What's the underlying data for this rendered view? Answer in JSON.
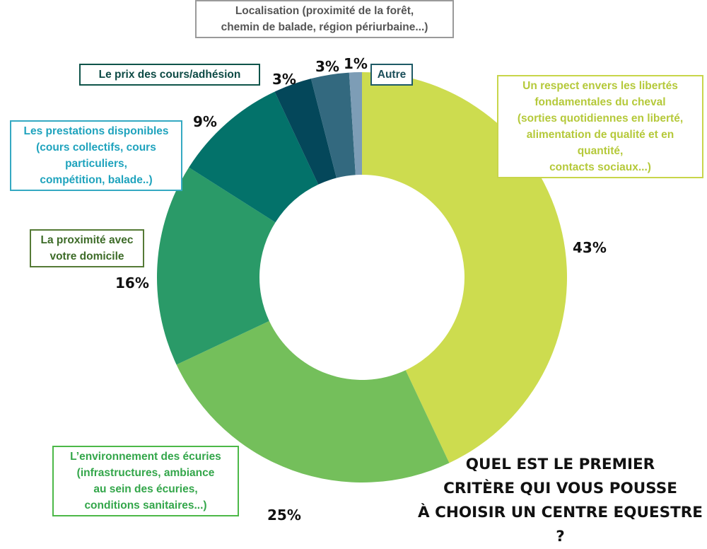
{
  "chart_data": {
    "type": "pie",
    "variant": "donut",
    "title": "QUEL EST LE PREMIER\nCRITÈRE QUI VOUS POUSSE\nÀ CHOISIR UN CENTRE EQUESTRE ?",
    "slices": [
      {
        "label": "Un respect envers les libertés\nfondamentales du cheval\n(sorties quotidiennes en liberté,\nalimentation de qualité et en quantité,\ncontacts sociaux...)",
        "value": 43,
        "value_label": "43%",
        "color": "#cddc4f"
      },
      {
        "label": "L’environnement des écuries\n(infrastructures, ambiance\nau sein des écuries,\nconditions sanitaires...)",
        "value": 25,
        "value_label": "25%",
        "color": "#74bf5b"
      },
      {
        "label": "La proximité avec\nvotre domicile",
        "value": 16,
        "value_label": "16%",
        "color": "#2a9a68"
      },
      {
        "label": "Les prestations disponibles\n(cours collectifs, cours\nparticuliers,\ncompétition, balade..)",
        "value": 9,
        "value_label": "9%",
        "color": "#03726a"
      },
      {
        "label": "Le prix des cours/adhésion",
        "value": 3,
        "value_label": "3%",
        "color": "#04475a"
      },
      {
        "label": "Localisation (proximité de la forêt,\nchemin de balade, région périurbaine...)",
        "value": 3,
        "value_label": "3%",
        "color": "#33697f"
      },
      {
        "label": "Autre",
        "value": 1,
        "value_label": "1%",
        "color": "#7d9db6"
      }
    ],
    "label_colors": [
      "#b5c93a",
      "#33a64a",
      "#3d6b28",
      "#1fa3bd",
      "#0d4a45",
      "#555555",
      "#1b4f5a"
    ],
    "box_border_colors": [
      "#c8d64a",
      "#4cb848",
      "#557a36",
      "#35a9c2",
      "#0f544a",
      "#9a9a9a",
      "#1e5a66"
    ],
    "legend": "none"
  }
}
